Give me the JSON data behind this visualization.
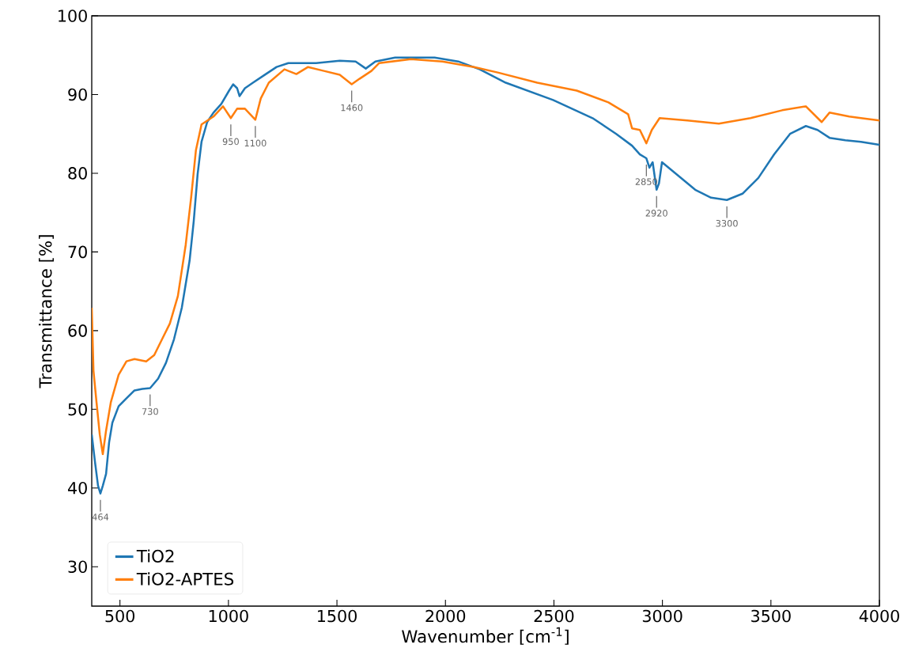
{
  "chart_data": {
    "type": "line",
    "xlabel": "Wavenumber [cm$^{-1}$]",
    "ylabel": "Transmittance [%]",
    "xlim": [
      370,
      4000
    ],
    "ylim": [
      25,
      100
    ],
    "xticks": [
      500,
      1000,
      1500,
      2000,
      2500,
      3000,
      3500,
      4000
    ],
    "yticks": [
      30,
      40,
      50,
      60,
      70,
      80,
      90,
      100
    ],
    "legend": "bottom left",
    "grid": false,
    "marker": "none",
    "line_style": "solid",
    "series": [
      {
        "name": "TiO2",
        "color": "#1f77b4",
        "x": [
          370,
          385,
          399,
          410,
          421,
          436,
          450,
          465,
          494,
          530,
          567,
          603,
          639,
          676,
          712,
          749,
          785,
          821,
          840,
          858,
          876,
          902,
          931,
          967,
          1003,
          1022,
          1040,
          1051,
          1076,
          1113,
          1167,
          1222,
          1276,
          1404,
          1513,
          1586,
          1633,
          1677,
          1768,
          1950,
          2059,
          2158,
          2278,
          2496,
          2678,
          2787,
          2860,
          2896,
          2926,
          2940,
          2955,
          2973,
          2984,
          2998,
          3042,
          3151,
          3224,
          3297,
          3369,
          3442,
          3515,
          3588,
          3661,
          3715,
          3770,
          3843,
          3915,
          4000
        ],
        "values": [
          46.8,
          43.3,
          40.3,
          39.3,
          40.3,
          41.8,
          45.8,
          48.3,
          50.4,
          51.4,
          52.4,
          52.6,
          52.7,
          53.9,
          55.9,
          58.9,
          62.9,
          68.9,
          73.9,
          79.9,
          84.0,
          86.5,
          87.7,
          88.8,
          90.5,
          91.3,
          90.8,
          89.8,
          90.8,
          91.5,
          92.5,
          93.5,
          94.0,
          94.0,
          94.3,
          94.2,
          93.3,
          94.2,
          94.7,
          94.7,
          94.2,
          93.2,
          91.5,
          89.3,
          87.0,
          85.0,
          83.5,
          82.4,
          81.9,
          80.7,
          81.4,
          77.9,
          78.7,
          81.4,
          80.4,
          77.9,
          76.9,
          76.6,
          77.4,
          79.4,
          82.4,
          85.0,
          86.0,
          85.5,
          84.5,
          84.2,
          84.0,
          83.6
        ]
      },
      {
        "name": "TiO2-APTES",
        "color": "#ff7f0e",
        "x": [
          370,
          378,
          392,
          407,
          421,
          436,
          458,
          494,
          530,
          567,
          621,
          658,
          694,
          730,
          767,
          803,
          828,
          850,
          876,
          931,
          975,
          1011,
          1040,
          1076,
          1124,
          1149,
          1186,
          1258,
          1313,
          1367,
          1440,
          1513,
          1568,
          1604,
          1659,
          1695,
          1841,
          1986,
          2132,
          2241,
          2423,
          2605,
          2751,
          2842,
          2860,
          2896,
          2926,
          2951,
          2987,
          3115,
          3260,
          3406,
          3552,
          3661,
          3734,
          3770,
          3861,
          3915,
          4000
        ],
        "values": [
          62.9,
          54.9,
          50.9,
          46.8,
          44.3,
          47.3,
          50.9,
          54.4,
          56.1,
          56.4,
          56.1,
          56.9,
          58.9,
          60.9,
          64.4,
          70.9,
          76.9,
          82.9,
          86.2,
          87.2,
          88.5,
          87.0,
          88.2,
          88.2,
          86.8,
          89.5,
          91.5,
          93.2,
          92.6,
          93.5,
          93.0,
          92.5,
          91.3,
          92.0,
          93.0,
          94.0,
          94.5,
          94.2,
          93.5,
          92.8,
          91.5,
          90.5,
          89.0,
          87.5,
          85.7,
          85.5,
          83.8,
          85.5,
          87.0,
          86.7,
          86.3,
          87.0,
          88.0,
          88.5,
          86.5,
          87.7,
          87.2,
          87.0,
          86.7
        ]
      }
    ],
    "annotations": [
      {
        "text": "464",
        "x": 410,
        "y": 39.3
      },
      {
        "text": "730",
        "x": 639,
        "y": 52.7
      },
      {
        "text": "950",
        "x": 1011,
        "y": 87.0
      },
      {
        "text": "1100",
        "x": 1124,
        "y": 86.8
      },
      {
        "text": "1460",
        "x": 1568,
        "y": 91.3
      },
      {
        "text": "2850",
        "x": 2926,
        "y": 81.9
      },
      {
        "text": "2920",
        "x": 2973,
        "y": 77.9
      },
      {
        "text": "3300",
        "x": 3297,
        "y": 76.6
      }
    ]
  }
}
